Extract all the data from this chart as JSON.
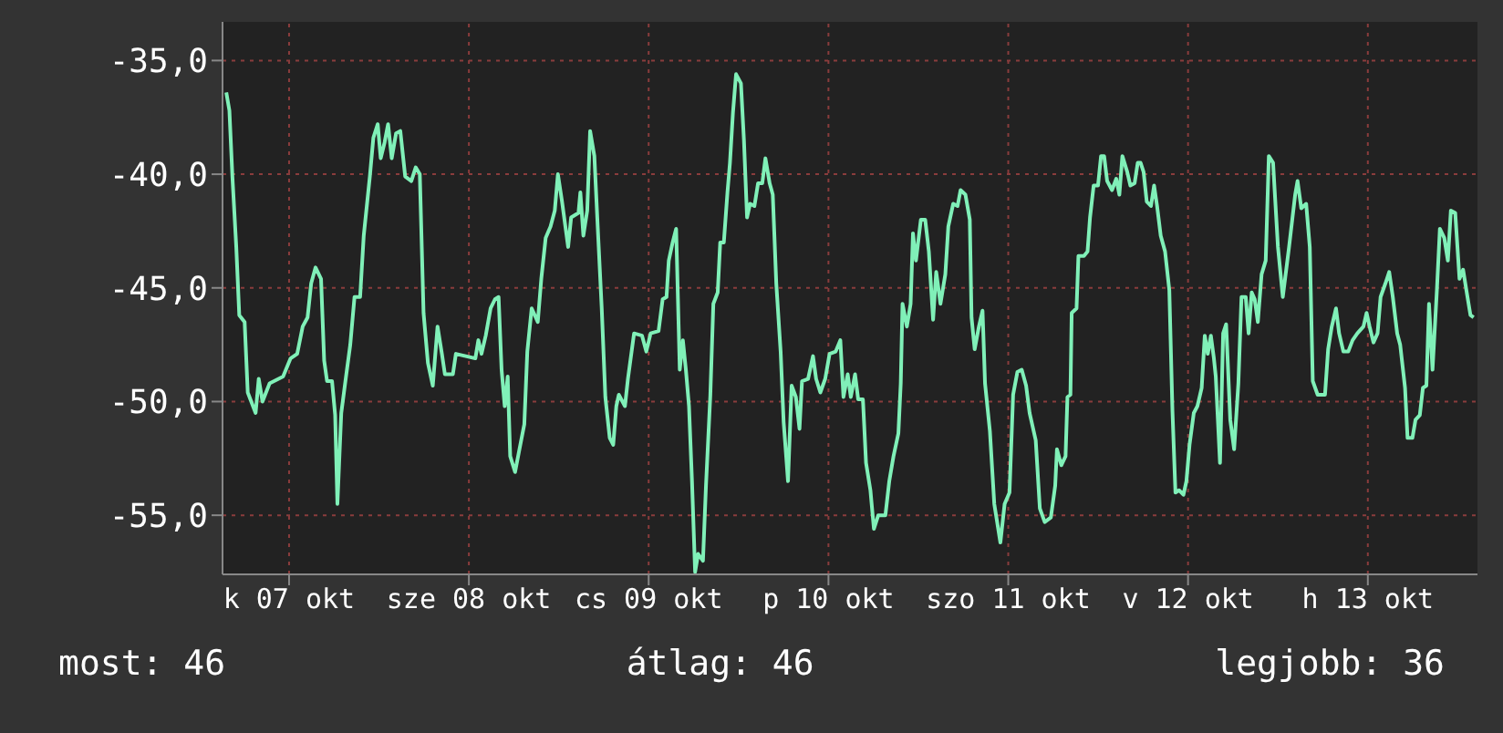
{
  "chart_data": {
    "type": "line",
    "xlim": [
      "--10-07T03:07",
      "--10-14T02:38"
    ],
    "xticks": [
      {
        "value": "--10-07T12:00",
        "label": "k 07 okt"
      },
      {
        "value": "--10-08T12:00",
        "label": "sze 08 okt"
      },
      {
        "value": "--10-09T12:00",
        "label": "cs 09 okt"
      },
      {
        "value": "--10-10T12:00",
        "label": "p 10 okt"
      },
      {
        "value": "--10-11T12:00",
        "label": "szo 11 okt"
      },
      {
        "value": "--10-12T12:00",
        "label": "v 12 okt"
      },
      {
        "value": "--10-13T12:00",
        "label": "h 13 okt"
      }
    ],
    "ylim": [
      -57.6,
      -33.3
    ],
    "yticks": [
      {
        "value": -55,
        "label": "-55,0"
      },
      {
        "value": -50,
        "label": "-50,0"
      },
      {
        "value": -45,
        "label": "-45,0"
      },
      {
        "value": -40,
        "label": "-40,0"
      },
      {
        "value": -35,
        "label": "-35,0"
      }
    ],
    "grid": true,
    "annotations": [
      "most: 46",
      "átlag: 46",
      "legjobb: 36"
    ],
    "series": [
      {
        "color": "#80f0b8",
        "x": [
          "--10-07T03:37",
          "--10-07T04:02",
          "--10-07T04:26",
          "--10-07T04:57",
          "--10-07T05:21",
          "--10-07T06:04",
          "--10-07T06:29",
          "--10-07T07:32",
          "--10-07T07:57",
          "--10-07T08:27",
          "--10-07T09:24",
          "--10-07T11:12",
          "--10-07T12:12",
          "--10-07T13:05",
          "--10-07T13:49",
          "--10-07T14:28",
          "--10-07T14:57",
          "--10-07T15:32",
          "--10-07T16:16",
          "--10-07T16:41",
          "--10-07T17:04",
          "--10-07T17:44",
          "--10-07T18:09",
          "--10-07T18:27",
          "--10-07T18:58",
          "--10-07T19:36",
          "--10-07T20:10",
          "--10-07T20:44",
          "--10-07T21:29",
          "--10-07T21:58",
          "--10-07T22:47",
          "--10-07T23:15",
          "--10-07T23:50",
          "--10-08T00:14",
          "--10-08T00:45",
          "--10-08T01:13",
          "--10-08T01:42",
          "--10-08T02:17",
          "--10-08T02:51",
          "--10-08T03:30",
          "--10-08T04:19",
          "--10-08T04:54",
          "--10-08T05:27",
          "--10-08T05:57",
          "--10-08T06:32",
          "--10-08T07:11",
          "--10-08T07:49",
          "--10-08T08:24",
          "--10-08T08:48",
          "--10-08T09:52",
          "--10-08T10:16",
          "--10-08T12:52",
          "--10-08T13:16",
          "--10-08T13:41",
          "--10-08T14:15",
          "--10-08T14:54",
          "--10-08T15:29",
          "--10-08T15:58",
          "--10-08T16:22",
          "--10-08T16:47",
          "--10-08T17:11",
          "--10-08T17:31",
          "--10-08T18:10",
          "--10-08T18:45",
          "--10-08T19:24",
          "--10-08T19:48",
          "--10-08T20:23",
          "--10-08T21:12",
          "--10-08T21:40",
          "--10-08T22:15",
          "--10-08T22:54",
          "--10-08T23:28",
          "--10-08T23:53",
          "--10-09T00:26",
          "--10-09T01:15",
          "--10-09T01:39",
          "--10-09T02:38",
          "--10-09T02:53",
          "--10-09T03:17",
          "--10-09T03:48",
          "--10-09T04:11",
          "--10-09T04:45",
          "--10-09T05:10",
          "--10-09T05:44",
          "--10-09T06:13",
          "--10-09T06:48",
          "--10-09T07:16",
          "--10-09T07:41",
          "--10-09T08:01",
          "--10-09T08:50",
          "--10-09T09:14",
          "--10-09T10:03",
          "--10-09T11:07",
          "--10-09T11:41",
          "--10-09T12:16",
          "--10-09T13:19",
          "--10-09T13:52",
          "--10-09T14:23",
          "--10-09T14:41",
          "--10-09T15:12",
          "--10-09T15:40",
          "--10-09T16:09",
          "--10-09T16:34",
          "--10-09T16:58",
          "--10-09T17:23",
          "--10-09T17:47",
          "--10-09T18:12",
          "--10-09T18:36",
          "--10-09T19:15",
          "--10-09T19:39",
          "--10-09T20:14",
          "--10-09T20:38",
          "--10-09T21:13",
          "--10-09T21:33",
          "--10-09T22:02",
          "--10-09T22:31",
          "--10-09T22:51",
          "--10-09T23:15",
          "--10-09T23:40",
          "--10-10T00:19",
          "--10-10T00:43",
          "--10-10T01:08",
          "--10-10T01:32",
          "--10-10T02:07",
          "--10-10T02:36",
          "--10-10T03:10",
          "--10-10T03:35",
          "--10-10T04:09",
          "--10-10T04:34",
          "--10-10T05:02",
          "--10-10T05:37",
          "--10-10T06:01",
          "--10-10T06:36",
          "--10-10T07:05",
          "--10-10T07:39",
          "--10-10T08:08",
          "--10-10T08:28",
          "--10-10T09:17",
          "--10-10T09:56",
          "--10-10T10:21",
          "--10-10T10:55",
          "--10-10T11:34",
          "--10-10T12:09",
          "--10-10T12:58",
          "--10-10T13:35",
          "--10-10T14:00",
          "--10-10T14:34",
          "--10-10T14:59",
          "--10-10T15:33",
          "--10-10T15:58",
          "--10-10T16:36",
          "--10-10T17:01",
          "--10-10T17:36",
          "--10-10T18:04",
          "--10-10T18:39",
          "--10-10T19:36",
          "--10-10T20:07",
          "--10-10T20:41",
          "--10-10T21:20",
          "--10-10T21:39",
          "--10-10T21:53",
          "--10-10T22:28",
          "--10-10T22:58",
          "--10-10T23:17",
          "--10-10T23:41",
          "--10-11T00:20",
          "--10-11T00:55",
          "--10-11T01:24",
          "--10-11T01:58",
          "--10-11T02:23",
          "--10-11T02:57",
          "--10-11T03:36",
          "--10-11T04:00",
          "--10-11T04:39",
          "--10-11T05:14",
          "--10-11T05:38",
          "--10-11T06:17",
          "--10-11T06:52",
          "--10-11T07:06",
          "--10-11T07:31",
          "--10-11T08:05",
          "--10-11T08:34",
          "--10-11T08:54",
          "--10-11T09:33",
          "--10-11T10:08",
          "--10-11T10:57",
          "--10-11T11:31",
          "--10-11T12:10",
          "--10-11T12:39",
          "--10-11T13:13",
          "--10-11T13:48",
          "--10-11T14:23",
          "--10-11T14:51",
          "--10-11T15:40",
          "--10-11T16:13",
          "--10-11T16:52",
          "--10-11T17:41",
          "--10-11T18:16",
          "--10-11T18:30",
          "--10-11T19:05",
          "--10-11T19:39",
          "--10-11T19:54",
          "--10-11T20:18",
          "--10-11T20:28",
          "--10-11T21:07",
          "--10-11T21:22",
          "--10-11T22:06",
          "--10-11T22:35",
          "--10-11T22:55",
          "--10-11T23:24",
          "--10-11T23:59",
          "--10-12T00:23",
          "--10-12T00:48",
          "--10-12T01:12",
          "--10-12T01:51",
          "--10-12T02:25",
          "--10-12T02:50",
          "--10-12T03:14",
          "--10-12T03:53",
          "--10-12T04:18",
          "--10-12T04:52",
          "--10-12T05:17",
          "--10-12T05:40",
          "--10-12T06:04",
          "--10-12T06:29",
          "--10-12T07:03",
          "--10-12T07:28",
          "--10-12T07:52",
          "--10-12T08:21",
          "--10-12T08:56",
          "--10-12T09:30",
          "--10-12T09:55",
          "--10-12T10:19",
          "--10-12T10:48",
          "--10-12T11:23",
          "--10-12T11:47",
          "--10-12T12:12",
          "--10-12T12:46",
          "--10-12T13:15",
          "--10-12T13:49",
          "--10-12T14:14",
          "--10-12T14:38",
          "--10-12T15:03",
          "--10-12T15:27",
          "--10-12T15:42",
          "--10-12T16:16",
          "--10-12T16:41",
          "--10-12T17:05",
          "--10-12T17:38",
          "--10-12T18:09",
          "--10-12T18:43",
          "--10-12T19:08",
          "--10-12T19:42",
          "--10-12T20:05",
          "--10-12T20:30",
          "--10-12T20:54",
          "--10-12T21:19",
          "--10-12T21:49",
          "--10-12T22:22",
          "--10-12T22:47",
          "--10-12T23:21",
          "--10-13T00:00",
          "--10-13T00:39",
          "--10-13T01:29",
          "--10-13T02:18",
          "--10-13T02:37",
          "--10-13T03:07",
          "--10-13T03:46",
          "--10-13T04:15",
          "--10-13T04:39",
          "--10-13T05:18",
          "--10-13T06:17",
          "--10-13T06:42",
          "--10-13T07:11",
          "--10-13T07:45",
          "--10-13T08:10",
          "--10-13T08:44",
          "--10-13T09:23",
          "--10-13T09:58",
          "--10-13T10:36",
          "--10-13T11:25",
          "--10-13T11:50",
          "--10-13T12:14",
          "--10-13T12:45",
          "--10-13T13:18",
          "--10-13T13:42",
          "--10-13T14:21",
          "--10-13T14:51",
          "--10-13T15:20",
          "--10-13T15:55",
          "--10-13T16:19",
          "--10-13T16:58",
          "--10-13T17:18",
          "--10-13T17:57",
          "--10-13T18:22",
          "--10-13T18:56",
          "--10-13T19:21",
          "--10-13T19:49",
          "--10-13T20:10",
          "--10-13T20:38",
          "--10-13T21:13",
          "--10-13T21:37",
          "--10-13T22:12",
          "--10-13T22:41",
          "--10-13T23:05",
          "--10-13T23:40",
          "--10-14T00:14",
          "--10-14T00:43",
          "--10-14T01:18",
          "--10-14T01:42",
          "--10-14T02:07"
        ],
        "values": [
          -36.4,
          -37.2,
          -40.1,
          -43.2,
          -46.2,
          -46.5,
          -49.6,
          -50.5,
          -49.0,
          -50.0,
          -49.2,
          -48.9,
          -48.1,
          -47.9,
          -46.7,
          -46.3,
          -44.8,
          -44.1,
          -44.6,
          -48.2,
          -49.1,
          -49.1,
          -50.6,
          -54.5,
          -50.5,
          -48.9,
          -47.5,
          -45.4,
          -45.4,
          -42.7,
          -40.1,
          -38.4,
          -37.8,
          -39.3,
          -38.6,
          -37.8,
          -39.3,
          -38.2,
          -38.1,
          -40.1,
          -40.3,
          -39.7,
          -40.0,
          -46.1,
          -48.3,
          -49.3,
          -46.7,
          -47.9,
          -48.8,
          -48.8,
          -47.9,
          -48.1,
          -47.3,
          -47.9,
          -47.1,
          -45.9,
          -45.5,
          -45.4,
          -48.6,
          -50.2,
          -48.9,
          -52.4,
          -53.1,
          -52.1,
          -51.0,
          -47.8,
          -45.9,
          -46.5,
          -44.6,
          -42.8,
          -42.3,
          -41.6,
          -40.0,
          -41.2,
          -43.2,
          -41.9,
          -41.7,
          -40.8,
          -42.7,
          -41.6,
          -38.1,
          -39.2,
          -42.1,
          -45.9,
          -49.8,
          -51.6,
          -51.9,
          -50.2,
          -49.7,
          -50.2,
          -49.0,
          -47.0,
          -47.1,
          -47.8,
          -47.0,
          -46.9,
          -45.5,
          -45.4,
          -43.8,
          -43.0,
          -42.4,
          -48.6,
          -47.3,
          -48.6,
          -50.2,
          -53.5,
          -57.5,
          -56.7,
          -57.0,
          -53.7,
          -49.7,
          -45.7,
          -45.2,
          -43.0,
          -43.0,
          -40.8,
          -39.5,
          -37.3,
          -35.6,
          -36.0,
          -38.5,
          -41.9,
          -41.3,
          -41.4,
          -40.4,
          -40.4,
          -39.3,
          -40.4,
          -40.9,
          -44.8,
          -47.8,
          -50.9,
          -53.5,
          -49.3,
          -49.8,
          -51.2,
          -49.1,
          -49.0,
          -48.0,
          -49.0,
          -49.6,
          -49.0,
          -47.9,
          -47.8,
          -47.3,
          -49.8,
          -48.8,
          -49.8,
          -48.8,
          -49.9,
          -49.9,
          -52.7,
          -53.9,
          -55.6,
          -55.0,
          -55.0,
          -53.5,
          -52.4,
          -51.4,
          -49.2,
          -45.7,
          -46.7,
          -45.7,
          -42.6,
          -43.8,
          -42.0,
          -42.0,
          -43.4,
          -46.4,
          -44.3,
          -45.7,
          -44.4,
          -42.3,
          -41.3,
          -41.4,
          -40.7,
          -40.9,
          -42.0,
          -46.3,
          -47.7,
          -46.7,
          -46.0,
          -49.2,
          -51.3,
          -54.5,
          -56.2,
          -54.5,
          -54.0,
          -49.7,
          -48.7,
          -48.6,
          -49.3,
          -50.5,
          -51.7,
          -54.7,
          -55.3,
          -55.1,
          -53.7,
          -52.1,
          -52.8,
          -52.4,
          -49.8,
          -49.7,
          -46.1,
          -45.9,
          -43.6,
          -43.6,
          -43.4,
          -41.9,
          -40.5,
          -40.5,
          -39.2,
          -39.2,
          -40.3,
          -40.7,
          -40.2,
          -40.9,
          -39.2,
          -39.9,
          -40.5,
          -40.4,
          -39.5,
          -39.5,
          -39.9,
          -41.2,
          -41.4,
          -40.5,
          -41.4,
          -42.7,
          -43.4,
          -45.1,
          -50.4,
          -54.0,
          -53.9,
          -54.1,
          -53.5,
          -51.9,
          -50.5,
          -50.2,
          -49.4,
          -47.1,
          -47.9,
          -47.1,
          -48.1,
          -48.9,
          -52.7,
          -47.0,
          -46.6,
          -50.8,
          -52.1,
          -49.2,
          -45.4,
          -45.4,
          -47.0,
          -45.2,
          -45.5,
          -46.5,
          -44.4,
          -43.8,
          -39.2,
          -39.5,
          -43.2,
          -45.4,
          -43.2,
          -40.9,
          -40.3,
          -41.5,
          -41.3,
          -43.2,
          -49.1,
          -49.7,
          -49.7,
          -47.7,
          -46.7,
          -45.9,
          -47.0,
          -47.8,
          -47.8,
          -47.3,
          -47.0,
          -46.7,
          -46.1,
          -46.7,
          -47.4,
          -47.0,
          -45.4,
          -44.8,
          -44.3,
          -45.4,
          -47.0,
          -47.5,
          -49.4,
          -51.6,
          -51.6,
          -50.8,
          -50.6,
          -49.4,
          -49.3,
          -45.7,
          -48.6,
          -45.1,
          -42.4,
          -42.8,
          -43.8,
          -41.6,
          -41.7,
          -44.6,
          -44.2,
          -45.4,
          -46.2,
          -46.3
        ]
      }
    ]
  }
}
